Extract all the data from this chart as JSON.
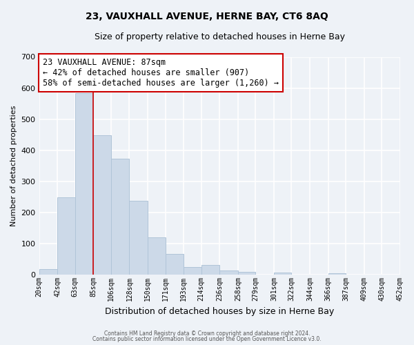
{
  "title": "23, VAUXHALL AVENUE, HERNE BAY, CT6 8AQ",
  "subtitle": "Size of property relative to detached houses in Herne Bay",
  "xlabel": "Distribution of detached houses by size in Herne Bay",
  "ylabel": "Number of detached properties",
  "footer_line1": "Contains HM Land Registry data © Crown copyright and database right 2024.",
  "footer_line2": "Contains public sector information licensed under the Open Government Licence v3.0.",
  "bar_edges": [
    20,
    42,
    63,
    85,
    106,
    128,
    150,
    171,
    193,
    214,
    236,
    258,
    279,
    301,
    322,
    344,
    366,
    387,
    409,
    430,
    452
  ],
  "bar_heights": [
    18,
    249,
    584,
    449,
    372,
    238,
    121,
    67,
    25,
    31,
    13,
    10,
    0,
    8,
    0,
    0,
    4,
    0,
    0,
    0
  ],
  "bar_color": "#ccd9e8",
  "bar_edge_color": "#b0c4d8",
  "xlabels": [
    "20sqm",
    "42sqm",
    "63sqm",
    "85sqm",
    "106sqm",
    "128sqm",
    "150sqm",
    "171sqm",
    "193sqm",
    "214sqm",
    "236sqm",
    "258sqm",
    "279sqm",
    "301sqm",
    "322sqm",
    "344sqm",
    "366sqm",
    "387sqm",
    "409sqm",
    "430sqm",
    "452sqm"
  ],
  "ylim": [
    0,
    700
  ],
  "yticks": [
    0,
    100,
    200,
    300,
    400,
    500,
    600,
    700
  ],
  "box_line1": "23 VAUXHALL AVENUE: 87sqm",
  "box_line2": "← 42% of detached houses are smaller (907)",
  "box_line3": "58% of semi-detached houses are larger (1,260) →",
  "box_edge_color": "#cc0000",
  "vline_x": 85,
  "vline_color": "#cc0000",
  "background_color": "#eef2f7",
  "grid_color": "#ffffff",
  "title_fontsize": 10,
  "subtitle_fontsize": 9
}
